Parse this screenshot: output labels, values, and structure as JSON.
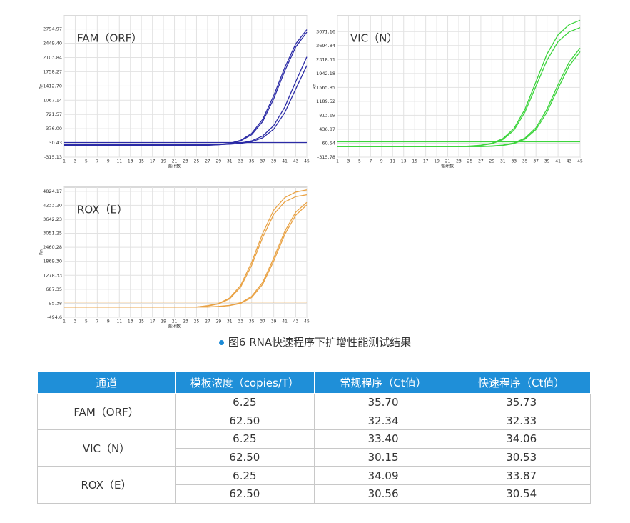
{
  "chart_data": [
    {
      "type": "line",
      "title": "FAM（ORF）",
      "x_label": "循环数",
      "y_label": "Rn",
      "color": "#2b2ba6",
      "xlim": [
        1,
        45
      ],
      "xticks": [
        1,
        3,
        5,
        7,
        9,
        11,
        13,
        15,
        17,
        19,
        21,
        23,
        25,
        27,
        29,
        31,
        33,
        35,
        37,
        39,
        41,
        43,
        45
      ],
      "ylim": [
        -315.13,
        3118
      ],
      "yticks": [
        -315.13,
        30.43,
        {
          "value": 376,
          "label": "376.00"
        },
        721.57,
        1067.14,
        {
          "value": 1412.7,
          "label": "1412.70"
        },
        1758.27,
        2103.84,
        {
          "value": 2449.4,
          "label": "2449.40"
        },
        2794.97
      ],
      "grid": true,
      "threshold": 40,
      "x": [
        1,
        3,
        5,
        7,
        9,
        11,
        13,
        15,
        17,
        19,
        21,
        23,
        25,
        27,
        29,
        31,
        33,
        35,
        37,
        39,
        41,
        43,
        45
      ],
      "series": [
        {
          "values": [
            -28,
            -28,
            -28,
            -28,
            -28,
            -28,
            -28,
            -28,
            -28,
            -28,
            -28,
            -28,
            -28,
            -28,
            -9,
            21,
            94,
            260,
            603,
            1176,
            1860,
            2437,
            2780
          ]
        },
        {
          "values": [
            -25,
            -25,
            -25,
            -25,
            -25,
            -25,
            -25,
            -25,
            -25,
            -25,
            -25,
            -25,
            -25,
            -25,
            -15,
            5,
            80,
            230,
            550,
            1100,
            1780,
            2360,
            2720
          ]
        },
        {
          "values": [
            -10,
            -10,
            -10,
            -10,
            -10,
            -10,
            -10,
            -10,
            -10,
            -10,
            -10,
            -10,
            -10,
            -10,
            -8,
            0,
            20,
            59,
            155,
            365,
            766,
            1340,
            1907
          ]
        },
        {
          "values": [
            -8,
            -8,
            -8,
            -8,
            -8,
            -8,
            -8,
            -8,
            -8,
            -8,
            -8,
            -8,
            -8,
            -8,
            -6,
            2,
            30,
            80,
            200,
            450,
            900,
            1520,
            2120
          ]
        }
      ]
    },
    {
      "type": "line",
      "title": "VIC（N）",
      "x_label": "循环数",
      "y_label": "Rn",
      "color": "#3cd43c",
      "xlim": [
        1,
        45
      ],
      "xticks": [
        1,
        3,
        5,
        7,
        9,
        11,
        13,
        15,
        17,
        19,
        21,
        23,
        25,
        27,
        29,
        31,
        33,
        35,
        37,
        39,
        41,
        43,
        45
      ],
      "ylim": [
        -315.78,
        3500
      ],
      "yticks": [
        -315.78,
        60.54,
        436.87,
        813.19,
        1189.52,
        1565.85,
        1942.18,
        2318.51,
        2694.84,
        3071.16
      ],
      "grid": true,
      "threshold": 100,
      "x": [
        1,
        3,
        5,
        7,
        9,
        11,
        13,
        15,
        17,
        19,
        21,
        23,
        25,
        27,
        29,
        31,
        33,
        35,
        37,
        39,
        41,
        43,
        45
      ],
      "series": [
        {
          "values": [
            -30,
            -30,
            -30,
            -30,
            -30,
            -30,
            -30,
            -30,
            -30,
            -30,
            -30,
            -30,
            -15,
            7,
            60,
            185,
            456,
            976,
            1720,
            2465,
            2984,
            3256,
            3379
          ]
        },
        {
          "values": [
            -30,
            -30,
            -30,
            -30,
            -30,
            -30,
            -30,
            -30,
            -30,
            -30,
            -30,
            -30,
            -20,
            0,
            45,
            160,
            410,
            900,
            1600,
            2300,
            2800,
            3060,
            3180
          ]
        },
        {
          "values": [
            -30,
            -30,
            -30,
            -30,
            -30,
            -30,
            -30,
            -30,
            -30,
            -30,
            -30,
            -30,
            -30,
            -30,
            -13,
            9,
            67,
            197,
            478,
            980,
            1641,
            2243,
            2627
          ]
        },
        {
          "values": [
            -30,
            -30,
            -30,
            -30,
            -30,
            -30,
            -30,
            -30,
            -30,
            -30,
            -30,
            -30,
            -30,
            -30,
            -22,
            0,
            50,
            170,
            430,
            900,
            1540,
            2140,
            2530
          ]
        }
      ]
    },
    {
      "type": "line",
      "title": "ROX（E）",
      "x_label": "循环数",
      "y_label": "Rn",
      "color": "#e9a244",
      "xlim": [
        1,
        45
      ],
      "xticks": [
        1,
        3,
        5,
        7,
        9,
        11,
        13,
        15,
        17,
        19,
        21,
        23,
        25,
        27,
        29,
        31,
        33,
        35,
        37,
        39,
        41,
        43,
        45
      ],
      "ylim": [
        -494.6,
        5000
      ],
      "yticks": [
        -494.6,
        95.38,
        687.35,
        1278.33,
        {
          "value": 1869.3,
          "label": "1869.30"
        },
        2460.28,
        3051.25,
        3642.23,
        {
          "value": 4233.2,
          "label": "4233.20"
        },
        4824.17
      ],
      "grid": true,
      "threshold": 150,
      "x": [
        1,
        3,
        5,
        7,
        9,
        11,
        13,
        15,
        17,
        19,
        21,
        23,
        25,
        27,
        29,
        31,
        33,
        35,
        37,
        39,
        41,
        43,
        45
      ],
      "series": [
        {
          "values": [
            -60,
            -60,
            -60,
            -60,
            -60,
            -60,
            -60,
            -60,
            -60,
            -60,
            -60,
            -60,
            -60,
            -5,
            87,
            319,
            852,
            1827,
            3050,
            4030,
            4560,
            4795,
            4885
          ]
        },
        {
          "values": [
            -60,
            -60,
            -60,
            -60,
            -60,
            -60,
            -60,
            -60,
            -60,
            -60,
            -60,
            -60,
            -60,
            -20,
            70,
            280,
            780,
            1700,
            2880,
            3850,
            4380,
            4600,
            4680
          ]
        },
        {
          "values": [
            -60,
            -60,
            -60,
            -60,
            -60,
            -60,
            -60,
            -60,
            -60,
            -60,
            -60,
            -60,
            -60,
            -60,
            -35,
            6,
            115,
            388,
            985,
            2001,
            3131,
            3946,
            4357
          ]
        },
        {
          "values": [
            -60,
            -60,
            -60,
            -60,
            -60,
            -60,
            -60,
            -60,
            -60,
            -60,
            -60,
            -60,
            -60,
            -60,
            -45,
            0,
            90,
            340,
            900,
            1880,
            3000,
            3820,
            4250
          ]
        }
      ]
    }
  ],
  "caption": "图6  RNA快速程序下扩增性能测试结果",
  "table": {
    "header": [
      "通道",
      "模板浓度（copies/T）",
      "常规程序（Ct值）",
      "快速程序（Ct值）"
    ],
    "groups": [
      {
        "channel": "FAM（ORF）",
        "rows": [
          [
            "6.25",
            "35.70",
            "35.73"
          ],
          [
            "62.50",
            "32.34",
            "32.33"
          ]
        ]
      },
      {
        "channel": "VIC（N）",
        "rows": [
          [
            "6.25",
            "33.40",
            "34.06"
          ],
          [
            "62.50",
            "30.15",
            "30.53"
          ]
        ]
      },
      {
        "channel": "ROX（E）",
        "rows": [
          [
            "6.25",
            "34.09",
            "33.87"
          ],
          [
            "62.50",
            "30.56",
            "30.54"
          ]
        ]
      }
    ]
  }
}
